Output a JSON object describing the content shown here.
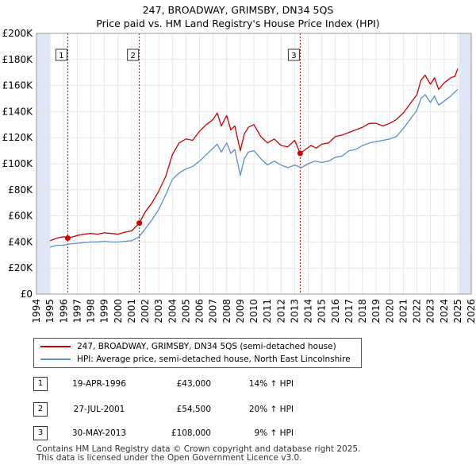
{
  "title": "247, BROADWAY, GRIMSBY, DN34 5QS",
  "subtitle": "Price paid vs. HM Land Registry's House Price Index (HPI)",
  "colors": {
    "property": "#cc0000",
    "hpi": "#5b8fd0",
    "shade": "#dde7f5",
    "marker": "#cc0000",
    "grid": "#e6e6e6"
  },
  "legend": {
    "property_label": "247, BROADWAY, GRIMSBY, DN34 5QS (semi-detached house)",
    "hpi_label": "HPI: Average price, semi-detached house, North East Lincolnshire"
  },
  "sales": [
    {
      "num": "1",
      "date": "19-APR-1996",
      "price": "£43,000",
      "hpi": "14% ↑ HPI"
    },
    {
      "num": "2",
      "date": "27-JUL-2001",
      "price": "£54,500",
      "hpi": "20% ↑ HPI"
    },
    {
      "num": "3",
      "date": "30-MAY-2013",
      "price": "£108,000",
      "hpi": "9% ↑ HPI"
    }
  ],
  "footer": {
    "line1": "Contains HM Land Registry data © Crown copyright and database right 2025.",
    "line2": "This data is licensed under the Open Government Licence v3.0."
  },
  "chart_data": {
    "type": "line",
    "title": "247, BROADWAY, GRIMSBY, DN34 5QS",
    "subtitle": "Price paid vs. HM Land Registry's House Price Index (HPI)",
    "xlabel": "",
    "ylabel": "",
    "xlim": [
      1994,
      2026
    ],
    "ylim": [
      0,
      200000
    ],
    "x_ticks": [
      1994,
      1995,
      1996,
      1997,
      1998,
      1999,
      2000,
      2001,
      2002,
      2003,
      2004,
      2005,
      2006,
      2007,
      2008,
      2009,
      2010,
      2011,
      2012,
      2013,
      2014,
      2015,
      2016,
      2017,
      2018,
      2019,
      2020,
      2021,
      2022,
      2023,
      2024,
      2025,
      2026
    ],
    "y_ticks": [
      {
        "value": 0,
        "label": "£0"
      },
      {
        "value": 20000,
        "label": "£20K"
      },
      {
        "value": 40000,
        "label": "£40K"
      },
      {
        "value": 60000,
        "label": "£60K"
      },
      {
        "value": 80000,
        "label": "£80K"
      },
      {
        "value": 100000,
        "label": "£100K"
      },
      {
        "value": 120000,
        "label": "£120K"
      },
      {
        "value": 140000,
        "label": "£140K"
      },
      {
        "value": 160000,
        "label": "£160K"
      },
      {
        "value": 180000,
        "label": "£180K"
      },
      {
        "value": 200000,
        "label": "£200K"
      }
    ],
    "shaded_ranges": [
      [
        1994,
        1995
      ],
      [
        2025.1,
        2026
      ]
    ],
    "series": [
      {
        "name": "247, BROADWAY, GRIMSBY, DN34 5QS (semi-detached house)",
        "x": [
          1995.0,
          1995.5,
          1996.0,
          1996.3,
          1996.7,
          1997.0,
          1997.5,
          1998.0,
          1998.5,
          1999.0,
          1999.5,
          2000.0,
          2000.5,
          2001.0,
          2001.57,
          2002.0,
          2002.5,
          2003.0,
          2003.5,
          2004.0,
          2004.5,
          2005.0,
          2005.5,
          2006.0,
          2006.5,
          2007.0,
          2007.3,
          2007.6,
          2008.0,
          2008.3,
          2008.6,
          2009.0,
          2009.3,
          2009.6,
          2010.0,
          2010.5,
          2011.0,
          2011.5,
          2012.0,
          2012.5,
          2013.0,
          2013.41,
          2013.8,
          2014.2,
          2014.6,
          2015.0,
          2015.5,
          2016.0,
          2016.5,
          2017.0,
          2017.5,
          2018.0,
          2018.5,
          2019.0,
          2019.5,
          2020.0,
          2020.5,
          2021.0,
          2021.5,
          2022.0,
          2022.3,
          2022.6,
          2023.0,
          2023.3,
          2023.6,
          2024.0,
          2024.5,
          2024.8,
          2025.0
        ],
        "y": [
          41000,
          43000,
          44000,
          43000,
          44000,
          45000,
          46000,
          46500,
          46000,
          47000,
          46500,
          46000,
          47500,
          48500,
          54500,
          63000,
          70000,
          79000,
          90000,
          107000,
          116000,
          119000,
          118000,
          125000,
          130000,
          134000,
          139000,
          129000,
          137000,
          126000,
          129000,
          110000,
          123000,
          128000,
          130000,
          121000,
          116000,
          119000,
          114000,
          113000,
          118000,
          108000,
          111000,
          114000,
          112000,
          115000,
          116000,
          121000,
          122000,
          124000,
          126000,
          128000,
          131000,
          131000,
          129000,
          131000,
          134000,
          139000,
          146000,
          153000,
          164000,
          168000,
          161000,
          166000,
          157000,
          162000,
          166000,
          167000,
          173000
        ]
      },
      {
        "name": "HPI: Average price, semi-detached house, North East Lincolnshire",
        "x": [
          1995.0,
          1995.5,
          1996.0,
          1996.5,
          1997.0,
          1997.5,
          1998.0,
          1998.5,
          1999.0,
          1999.5,
          2000.0,
          2000.5,
          2001.0,
          2001.5,
          2002.0,
          2002.5,
          2003.0,
          2003.5,
          2004.0,
          2004.5,
          2005.0,
          2005.5,
          2006.0,
          2006.5,
          2007.0,
          2007.3,
          2007.6,
          2008.0,
          2008.3,
          2008.6,
          2009.0,
          2009.3,
          2009.6,
          2010.0,
          2010.5,
          2011.0,
          2011.5,
          2012.0,
          2012.5,
          2013.0,
          2013.5,
          2014.0,
          2014.5,
          2015.0,
          2015.5,
          2016.0,
          2016.5,
          2017.0,
          2017.5,
          2018.0,
          2018.5,
          2019.0,
          2019.5,
          2020.0,
          2020.5,
          2021.0,
          2021.5,
          2022.0,
          2022.3,
          2022.6,
          2023.0,
          2023.3,
          2023.6,
          2024.0,
          2024.5,
          2024.8,
          2025.0
        ],
        "y": [
          36000,
          37500,
          37500,
          38500,
          39000,
          39500,
          40000,
          40000,
          40500,
          40000,
          40000,
          40500,
          41000,
          43500,
          50000,
          57000,
          65000,
          76000,
          88000,
          93000,
          96000,
          98000,
          102000,
          107000,
          112000,
          115000,
          109000,
          116000,
          108000,
          111000,
          91000,
          104000,
          109000,
          110000,
          104000,
          99000,
          102000,
          99000,
          97000,
          99000,
          97000,
          100000,
          102000,
          101000,
          102000,
          105000,
          106000,
          110000,
          111000,
          114000,
          116000,
          117000,
          118000,
          119000,
          121000,
          127000,
          134000,
          141000,
          150000,
          153000,
          147000,
          152000,
          145000,
          148000,
          152000,
          155000,
          157000
        ]
      }
    ],
    "annotations": [
      {
        "label": "1",
        "x": 1996.3,
        "y": 43000
      },
      {
        "label": "2",
        "x": 2001.57,
        "y": 54500
      },
      {
        "label": "3",
        "x": 2013.41,
        "y": 108000
      }
    ]
  }
}
